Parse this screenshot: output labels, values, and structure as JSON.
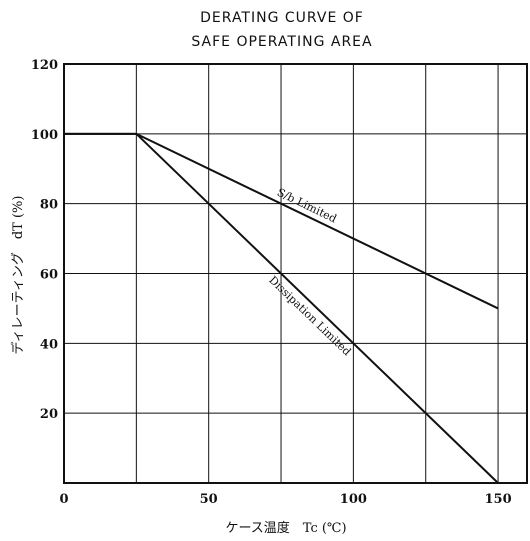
{
  "chart_data": {
    "type": "line",
    "title": "DERATING CURVE OF",
    "subtitle": "SAFE OPERATING AREA",
    "xlabel": "ケース温度　Tc (℃)",
    "ylabel": "ディレーティング　dT (%)",
    "xlim": [
      0,
      160
    ],
    "ylim": [
      0,
      120
    ],
    "x_ticks": [
      0,
      50,
      100,
      150
    ],
    "y_ticks": [
      20,
      40,
      60,
      80,
      100,
      120
    ],
    "x_grid": [
      25,
      50,
      75,
      100,
      125,
      150
    ],
    "y_grid": [
      20,
      40,
      60,
      80,
      100
    ],
    "grid": true,
    "series": [
      {
        "name": "S/b Limited",
        "x": [
          0,
          25,
          150
        ],
        "y": [
          100,
          100,
          50
        ]
      },
      {
        "name": "Dissipation Limited",
        "x": [
          0,
          25,
          150
        ],
        "y": [
          100,
          100,
          0
        ]
      }
    ]
  },
  "colors": {
    "line": "#111111",
    "grid": "#111111",
    "background": "#ffffff"
  }
}
